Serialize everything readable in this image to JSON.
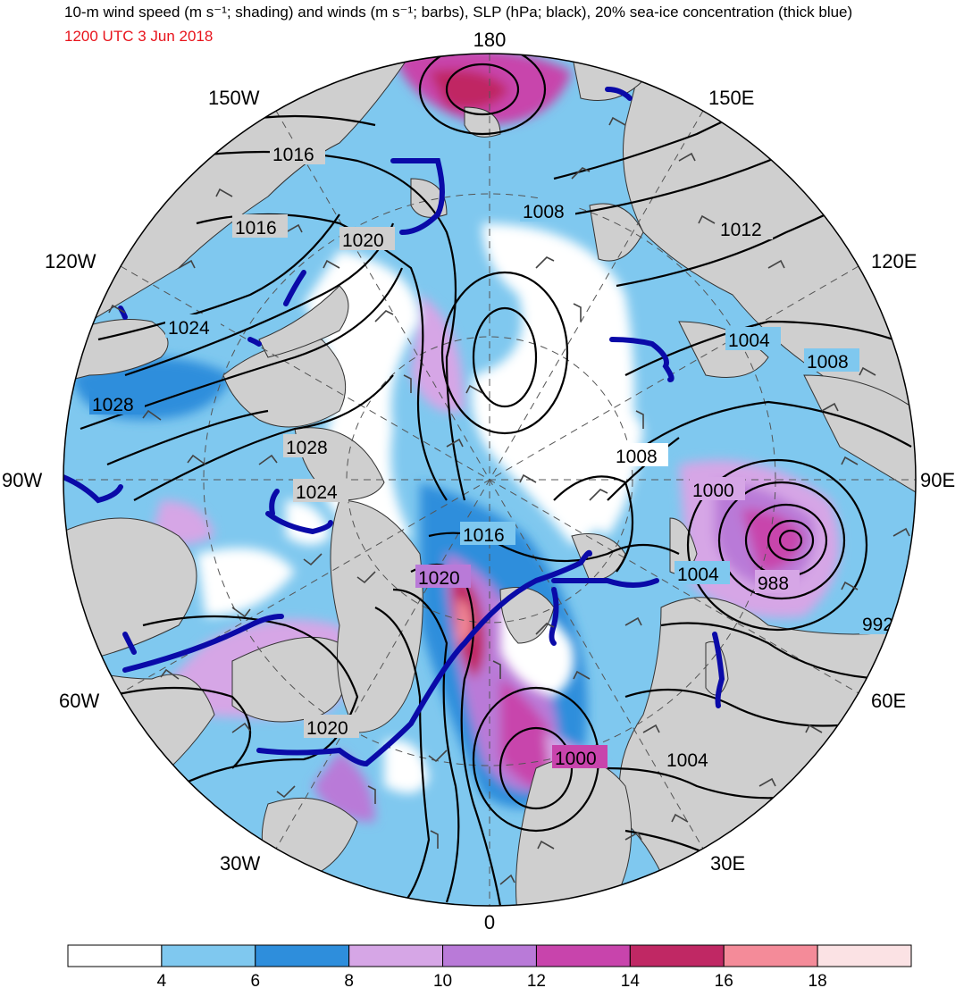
{
  "title": "10-m wind speed (m s⁻¹; shading) and winds (m s⁻¹; barbs), SLP (hPa; black), 20% sea-ice concentration (thick blue)",
  "valid_time": "1200 UTC 3 Jun 2018",
  "colors": {
    "valid_time": "#e8141c",
    "land": "#cfcfcf",
    "sea_ice": "#0a0aa8",
    "isobar": "#000000"
  },
  "longitude_labels": {
    "lon_180": "180",
    "lon_150e": "150E",
    "lon_120e": "120E",
    "lon_90e": "90E",
    "lon_60e": "60E",
    "lon_30e": "30E",
    "lon_0": "0",
    "lon_30w": "30W",
    "lon_60w": "60W",
    "lon_90w": "90W",
    "lon_120w": "120W",
    "lon_150w": "150W"
  },
  "isobar_labels": [
    "1016",
    "1016",
    "1020",
    "1024",
    "1028",
    "1028",
    "1024",
    "1008",
    "1012",
    "1004",
    "1008",
    "1008",
    "1000",
    "1016",
    "1020",
    "1004",
    "988",
    "992",
    "1020",
    "1000",
    "1004"
  ],
  "colorbar": {
    "bins": [
      {
        "color": "#ffffff"
      },
      {
        "color": "#7fc8ef"
      },
      {
        "color": "#2e8edc"
      },
      {
        "color": "#d6a6e6"
      },
      {
        "color": "#b97ad8"
      },
      {
        "color": "#c844ac"
      },
      {
        "color": "#c02864"
      },
      {
        "color": "#f48b99"
      },
      {
        "color": "#fbe2e4"
      }
    ],
    "tick_labels": [
      "4",
      "6",
      "8",
      "10",
      "12",
      "14",
      "16",
      "18"
    ]
  }
}
